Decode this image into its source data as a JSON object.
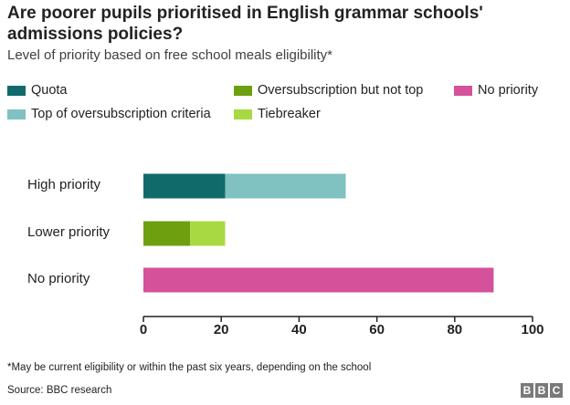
{
  "chart_data": {
    "type": "bar",
    "orientation": "horizontal",
    "stacked": true,
    "title": "Are poorer pupils prioritised in English grammar schools' admissions policies?",
    "subtitle": "Level of priority based on free school meals eligibility*",
    "categories": [
      "High priority",
      "Lower priority",
      "No priority"
    ],
    "series": [
      {
        "name": "Quota",
        "color": "#116A6A",
        "values": [
          21,
          0,
          0
        ]
      },
      {
        "name": "Top of oversubscription criteria",
        "color": "#80C1C1",
        "values": [
          31,
          0,
          0
        ]
      },
      {
        "name": "Oversubscription but not top",
        "color": "#6E9F0F",
        "values": [
          0,
          12,
          0
        ]
      },
      {
        "name": "Tiebreaker",
        "color": "#A9D941",
        "values": [
          0,
          9,
          0
        ]
      },
      {
        "name": "No priority",
        "color": "#D5519A",
        "values": [
          0,
          0,
          90
        ]
      }
    ],
    "xlim": [
      0,
      100
    ],
    "xticks": [
      0,
      20,
      40,
      60,
      80,
      100
    ],
    "xlabel": "",
    "ylabel": "",
    "grid": false,
    "legend_position": "top"
  },
  "legend_rows": [
    [
      "Quota",
      "Oversubscription but not top",
      "No priority"
    ],
    [
      "Top of oversubscription criteria",
      "Tiebreaker"
    ]
  ],
  "footnote": "*May be current eligibility or within the past six years, depending on the school",
  "source": "Source: BBC research",
  "logo": "BBC"
}
